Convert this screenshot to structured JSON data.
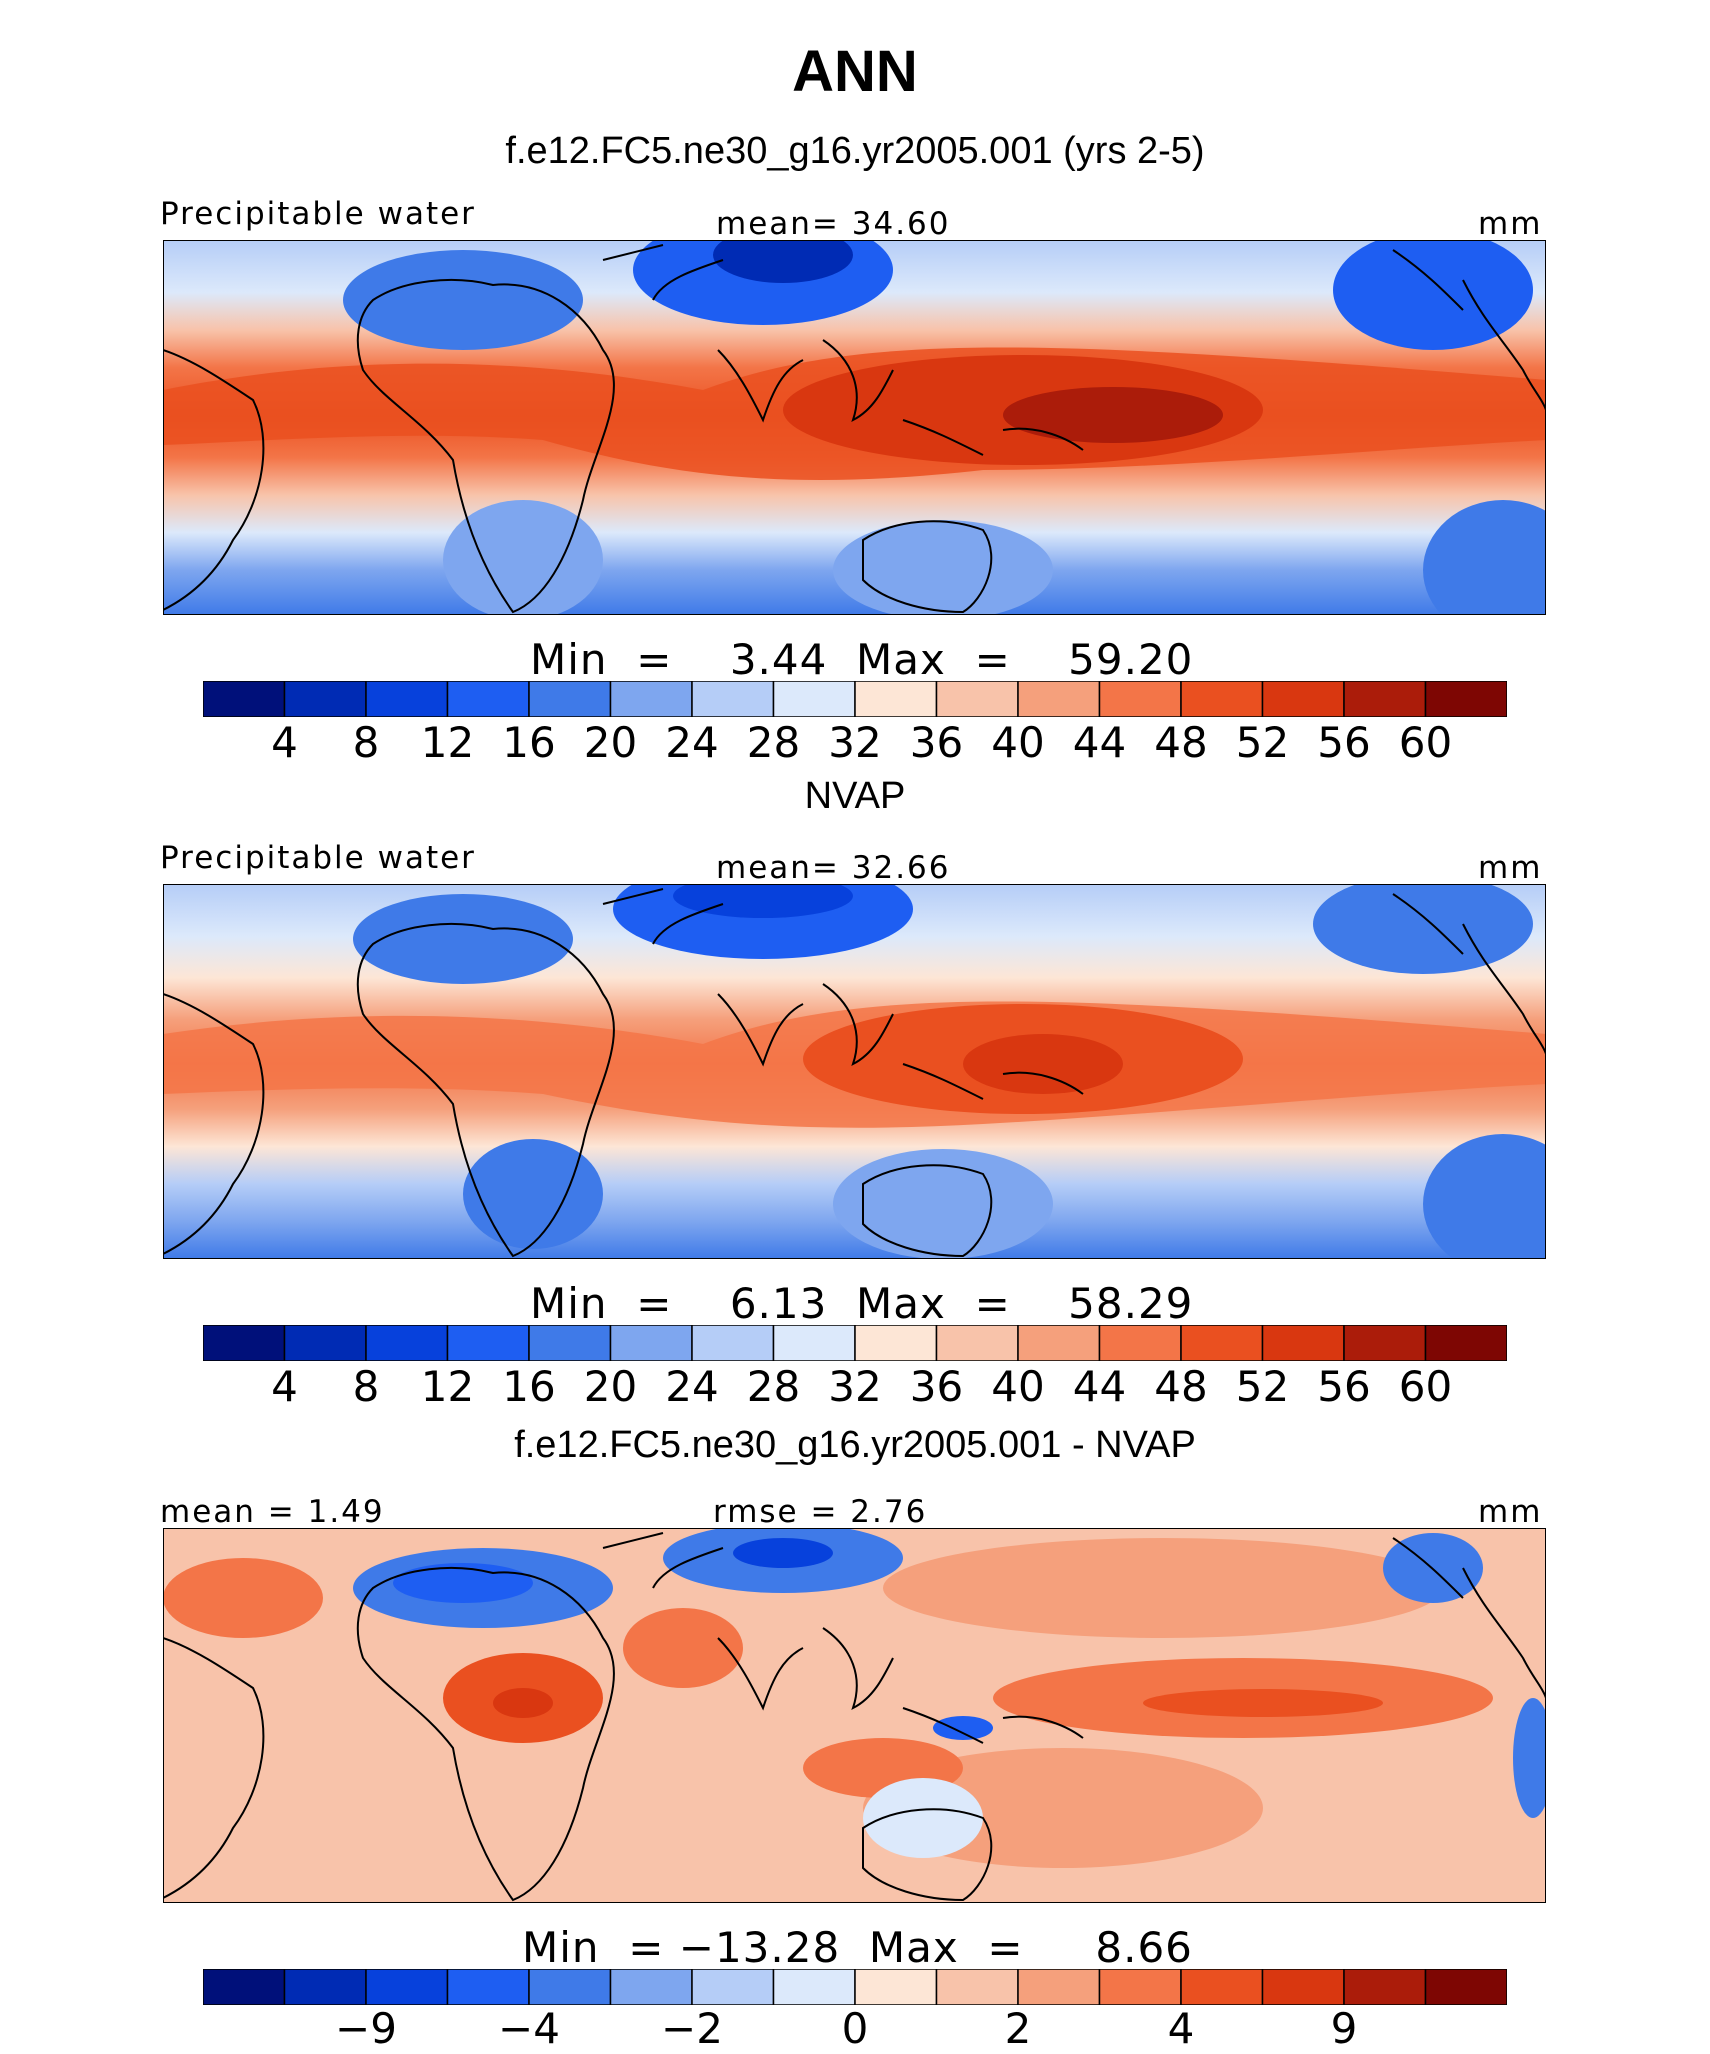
{
  "figure_title": "ANN",
  "colors": {
    "seq": [
      "#00107a",
      "#002bb4",
      "#0741dc",
      "#1e5ef2",
      "#3f7ae8",
      "#7ea6ef",
      "#b5cdf7",
      "#dce9fb",
      "#fde6d6",
      "#f8c3aa",
      "#f5a07c",
      "#f37548",
      "#ea5020",
      "#d93710",
      "#ab1c0a",
      "#7e0603"
    ],
    "land_outline": "#000000"
  },
  "panels": [
    {
      "title": "f.e12.FC5.ne30_g16.yr2005.001 (yrs 2-5)",
      "left_label": "Precipitable water",
      "center_label": "mean=   34.60",
      "units": "mm",
      "minmax": "Min  =    3.44  Max  =    59.20",
      "ticks": [
        "4",
        "8",
        "12",
        "16",
        "20",
        "24",
        "28",
        "32",
        "36",
        "40",
        "44",
        "48",
        "52",
        "56",
        "60"
      ]
    },
    {
      "title": "NVAP",
      "left_label": "Precipitable water",
      "center_label": "mean=   32.66",
      "units": "mm",
      "minmax": "Min  =    6.13  Max  =    58.29",
      "ticks": [
        "4",
        "8",
        "12",
        "16",
        "20",
        "24",
        "28",
        "32",
        "36",
        "40",
        "44",
        "48",
        "52",
        "56",
        "60"
      ]
    },
    {
      "title": "f.e12.FC5.ne30_g16.yr2005.001 - NVAP",
      "left_label": "mean  =     1.49",
      "center_label": "rmse  =    2.76",
      "units": "mm",
      "minmax": "Min  = −13.28  Max  =     8.66",
      "ticks": [
        "−9",
        "−4",
        "−2",
        "0",
        "2",
        "4",
        "9"
      ]
    }
  ],
  "chart_data": [
    {
      "type": "heatmap",
      "title": "f.e12.FC5.ne30_g16.yr2005.001 (yrs 2-5)",
      "variable": "Precipitable water",
      "units": "mm",
      "mean": 34.6,
      "min": 3.44,
      "max": 59.2,
      "levels": [
        4,
        8,
        12,
        16,
        20,
        24,
        28,
        32,
        36,
        40,
        44,
        48,
        52,
        56,
        60
      ]
    },
    {
      "type": "heatmap",
      "title": "NVAP",
      "variable": "Precipitable water",
      "units": "mm",
      "mean": 32.66,
      "min": 6.13,
      "max": 58.29,
      "levels": [
        4,
        8,
        12,
        16,
        20,
        24,
        28,
        32,
        36,
        40,
        44,
        48,
        52,
        56,
        60
      ]
    },
    {
      "type": "heatmap",
      "title": "f.e12.FC5.ne30_g16.yr2005.001 - NVAP",
      "units": "mm",
      "mean": 1.49,
      "rmse": 2.76,
      "min": -13.28,
      "max": 8.66,
      "levels": [
        -9,
        -4,
        -2,
        0,
        2,
        4,
        9
      ]
    }
  ]
}
